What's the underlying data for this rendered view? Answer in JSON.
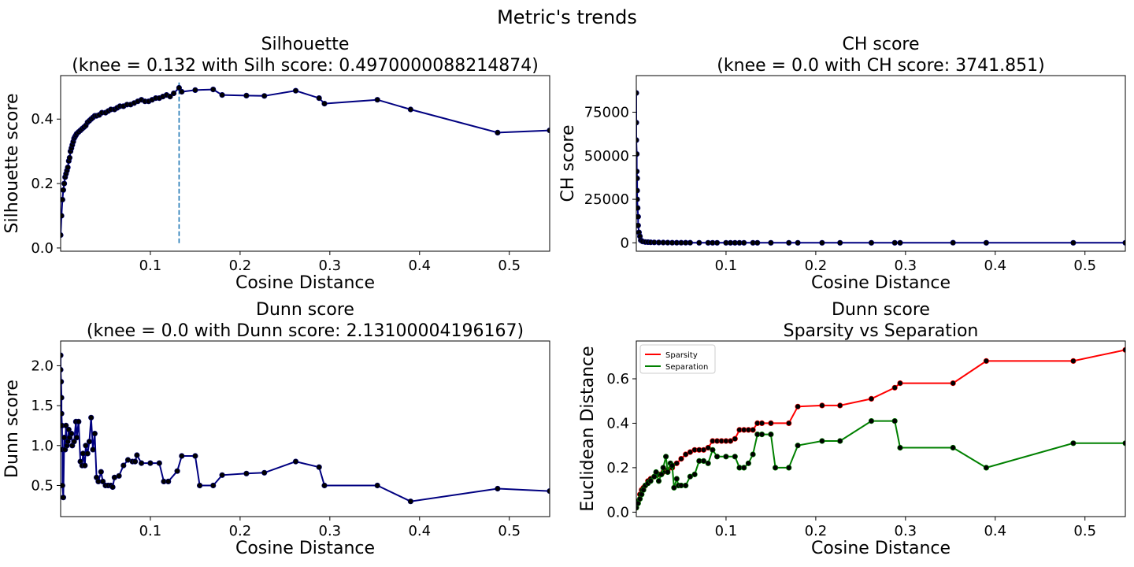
{
  "suptitle": "Metric's trends",
  "colors": {
    "line": "#000080",
    "marker": "#000000",
    "knee": "#1f77b4",
    "sparsity": "#ff0000",
    "separation": "#008000"
  },
  "chart_data": [
    {
      "id": "silhouette",
      "type": "line",
      "title": [
        "Silhouette",
        "(knee = 0.132 with Silh score: 0.4970000088214874)"
      ],
      "xlabel": "Cosine Distance",
      "ylabel": "Silhouette score",
      "xlim": [
        0.0,
        0.545
      ],
      "ylim": [
        -0.01,
        0.535
      ],
      "xticks": [
        0.1,
        0.2,
        0.3,
        0.4,
        0.5
      ],
      "xtick_labels": [
        "0.1",
        "0.2",
        "0.3",
        "0.4",
        "0.5"
      ],
      "yticks": [
        0.0,
        0.2,
        0.4
      ],
      "ytick_labels": [
        "0.0",
        "0.2",
        "0.4"
      ],
      "knee": {
        "x": 0.132,
        "y_range": [
          0.015,
          0.52
        ]
      },
      "series": [
        {
          "color_key": "line",
          "x": [
            0.0,
            0.001,
            0.002,
            0.003,
            0.004,
            0.005,
            0.006,
            0.007,
            0.008,
            0.009,
            0.01,
            0.011,
            0.012,
            0.013,
            0.014,
            0.015,
            0.016,
            0.017,
            0.018,
            0.02,
            0.022,
            0.024,
            0.026,
            0.028,
            0.03,
            0.032,
            0.034,
            0.036,
            0.038,
            0.04,
            0.043,
            0.046,
            0.05,
            0.053,
            0.056,
            0.06,
            0.063,
            0.066,
            0.07,
            0.074,
            0.078,
            0.082,
            0.086,
            0.09,
            0.094,
            0.098,
            0.102,
            0.106,
            0.11,
            0.114,
            0.118,
            0.122,
            0.126,
            0.132,
            0.135,
            0.15,
            0.17,
            0.18,
            0.207,
            0.227,
            0.262,
            0.288,
            0.294,
            0.353,
            0.39,
            0.487,
            0.545
          ],
          "y": [
            0.04,
            0.1,
            0.15,
            0.18,
            0.2,
            0.22,
            0.23,
            0.24,
            0.25,
            0.27,
            0.28,
            0.3,
            0.31,
            0.32,
            0.33,
            0.34,
            0.345,
            0.35,
            0.355,
            0.36,
            0.365,
            0.37,
            0.375,
            0.38,
            0.39,
            0.395,
            0.4,
            0.405,
            0.41,
            0.41,
            0.413,
            0.42,
            0.42,
            0.425,
            0.43,
            0.43,
            0.435,
            0.44,
            0.44,
            0.445,
            0.445,
            0.45,
            0.455,
            0.46,
            0.455,
            0.455,
            0.46,
            0.465,
            0.465,
            0.47,
            0.475,
            0.47,
            0.48,
            0.497,
            0.485,
            0.49,
            0.492,
            0.475,
            0.473,
            0.472,
            0.488,
            0.465,
            0.448,
            0.46,
            0.43,
            0.358,
            0.365
          ]
        }
      ]
    },
    {
      "id": "ch",
      "type": "line",
      "title": [
        "CH score",
        "(knee = 0.0 with CH score: 3741.851)"
      ],
      "xlabel": "Cosine Distance",
      "ylabel": "CH score",
      "xlim": [
        0.0,
        0.545
      ],
      "ylim": [
        -4800,
        96000
      ],
      "xticks": [
        0.1,
        0.2,
        0.3,
        0.4,
        0.5
      ],
      "xtick_labels": [
        "0.1",
        "0.2",
        "0.3",
        "0.4",
        "0.5"
      ],
      "yticks": [
        0,
        25000,
        50000,
        75000
      ],
      "ytick_labels": [
        "0",
        "25000",
        "50000",
        "75000"
      ],
      "series": [
        {
          "color_key": "line",
          "x": [
            0.0,
            0.0,
            0.0,
            0.0005,
            0.0005,
            0.001,
            0.001,
            0.001,
            0.0015,
            0.002,
            0.002,
            0.003,
            0.004,
            0.005,
            0.007,
            0.01,
            0.013,
            0.016,
            0.02,
            0.025,
            0.03,
            0.035,
            0.04,
            0.045,
            0.05,
            0.055,
            0.06,
            0.07,
            0.08,
            0.085,
            0.09,
            0.1,
            0.105,
            0.11,
            0.115,
            0.12,
            0.13,
            0.135,
            0.15,
            0.17,
            0.18,
            0.207,
            0.227,
            0.262,
            0.288,
            0.294,
            0.353,
            0.39,
            0.487,
            0.545
          ],
          "y": [
            86000,
            69000,
            59000,
            51000,
            41000,
            37000,
            30000,
            25000,
            20000,
            15000,
            10000,
            6000,
            3741,
            1500,
            800,
            500,
            400,
            300,
            250,
            200,
            150,
            120,
            100,
            90,
            80,
            70,
            60,
            50,
            45,
            40,
            38,
            36,
            34,
            32,
            30,
            28,
            26,
            25,
            24,
            23,
            22,
            21,
            20,
            20,
            20,
            20,
            80,
            20,
            20,
            20
          ]
        }
      ]
    },
    {
      "id": "dunn",
      "type": "line",
      "title": [
        "Dunn score",
        "(knee = 0.0 with Dunn score: 2.13100004196167)"
      ],
      "xlabel": "Cosine Distance",
      "ylabel": "Dunn score",
      "xlim": [
        0.0,
        0.545
      ],
      "ylim": [
        0.11,
        2.31
      ],
      "xticks": [
        0.1,
        0.2,
        0.3,
        0.4,
        0.5
      ],
      "xtick_labels": [
        "0.1",
        "0.2",
        "0.3",
        "0.4",
        "0.5"
      ],
      "yticks": [
        0.5,
        1.0,
        1.5,
        2.0
      ],
      "ytick_labels": [
        "0.5",
        "1.0",
        "1.5",
        "2.0"
      ],
      "series": [
        {
          "color_key": "line",
          "x": [
            0.0,
            0.0,
            0.0005,
            0.001,
            0.001,
            0.0015,
            0.002,
            0.002,
            0.003,
            0.004,
            0.005,
            0.006,
            0.007,
            0.008,
            0.009,
            0.01,
            0.012,
            0.013,
            0.015,
            0.017,
            0.018,
            0.02,
            0.022,
            0.024,
            0.025,
            0.027,
            0.028,
            0.03,
            0.032,
            0.034,
            0.036,
            0.038,
            0.04,
            0.042,
            0.045,
            0.047,
            0.05,
            0.053,
            0.056,
            0.058,
            0.06,
            0.065,
            0.07,
            0.075,
            0.08,
            0.083,
            0.085,
            0.09,
            0.1,
            0.11,
            0.115,
            0.12,
            0.13,
            0.135,
            0.15,
            0.155,
            0.17,
            0.18,
            0.207,
            0.227,
            0.262,
            0.288,
            0.294,
            0.353,
            0.39,
            0.487,
            0.545
          ],
          "y": [
            2.13,
            1.95,
            1.8,
            1.6,
            1.4,
            1.25,
            0.95,
            0.5,
            0.35,
            1.1,
            0.95,
            1.25,
            1.0,
            1.05,
            1.2,
            1.1,
            1.15,
            1.0,
            1.05,
            1.3,
            1.1,
            1.3,
            0.8,
            0.75,
            0.9,
            0.75,
            1.0,
            0.9,
            1.05,
            1.35,
            0.95,
            1.15,
            0.6,
            0.55,
            0.67,
            0.55,
            0.5,
            0.5,
            0.5,
            0.48,
            0.6,
            0.62,
            0.75,
            0.82,
            0.8,
            0.8,
            0.88,
            0.78,
            0.78,
            0.78,
            0.55,
            0.55,
            0.68,
            0.87,
            0.87,
            0.5,
            0.5,
            0.63,
            0.65,
            0.66,
            0.8,
            0.73,
            0.5,
            0.5,
            0.3,
            0.46,
            0.43
          ]
        }
      ]
    },
    {
      "id": "sparsity-separation",
      "type": "line",
      "title": [
        "Dunn score",
        "Sparsity vs Separation"
      ],
      "xlabel": "Cosine Distance",
      "ylabel": "Euclidean Distance",
      "xlim": [
        0.0,
        0.545
      ],
      "ylim": [
        -0.02,
        0.77
      ],
      "xticks": [
        0.1,
        0.2,
        0.3,
        0.4,
        0.5
      ],
      "xtick_labels": [
        "0.1",
        "0.2",
        "0.3",
        "0.4",
        "0.5"
      ],
      "yticks": [
        0.0,
        0.2,
        0.4,
        0.6
      ],
      "ytick_labels": [
        "0.0",
        "0.2",
        "0.4",
        "0.6"
      ],
      "legend": {
        "placement": "upper-left",
        "entries": [
          "Sparsity",
          "Separation"
        ]
      },
      "series": [
        {
          "name": "Sparsity",
          "color_key": "sparsity",
          "x": [
            0.0,
            0.002,
            0.004,
            0.006,
            0.008,
            0.01,
            0.013,
            0.016,
            0.02,
            0.025,
            0.03,
            0.035,
            0.04,
            0.045,
            0.05,
            0.055,
            0.06,
            0.065,
            0.07,
            0.075,
            0.08,
            0.085,
            0.09,
            0.095,
            0.1,
            0.105,
            0.11,
            0.115,
            0.12,
            0.125,
            0.13,
            0.135,
            0.14,
            0.15,
            0.17,
            0.18,
            0.207,
            0.227,
            0.262,
            0.288,
            0.294,
            0.353,
            0.39,
            0.487,
            0.545
          ],
          "y": [
            0.02,
            0.05,
            0.08,
            0.1,
            0.11,
            0.12,
            0.14,
            0.15,
            0.16,
            0.17,
            0.18,
            0.19,
            0.2,
            0.22,
            0.24,
            0.26,
            0.27,
            0.28,
            0.28,
            0.28,
            0.29,
            0.32,
            0.32,
            0.32,
            0.32,
            0.32,
            0.33,
            0.37,
            0.37,
            0.37,
            0.37,
            0.4,
            0.4,
            0.4,
            0.4,
            0.475,
            0.48,
            0.48,
            0.51,
            0.56,
            0.58,
            0.58,
            0.68,
            0.68,
            0.73
          ]
        },
        {
          "name": "Separation",
          "color_key": "separation",
          "x": [
            0.0,
            0.002,
            0.004,
            0.006,
            0.008,
            0.01,
            0.013,
            0.016,
            0.02,
            0.022,
            0.025,
            0.028,
            0.03,
            0.033,
            0.035,
            0.038,
            0.04,
            0.042,
            0.045,
            0.047,
            0.05,
            0.055,
            0.06,
            0.065,
            0.07,
            0.075,
            0.08,
            0.085,
            0.09,
            0.1,
            0.11,
            0.115,
            0.12,
            0.125,
            0.13,
            0.135,
            0.14,
            0.15,
            0.155,
            0.17,
            0.18,
            0.207,
            0.227,
            0.262,
            0.288,
            0.294,
            0.353,
            0.39,
            0.487,
            0.545
          ],
          "y": [
            0.02,
            0.04,
            0.06,
            0.08,
            0.1,
            0.12,
            0.13,
            0.14,
            0.16,
            0.18,
            0.14,
            0.17,
            0.2,
            0.25,
            0.18,
            0.22,
            0.21,
            0.11,
            0.15,
            0.12,
            0.12,
            0.12,
            0.16,
            0.17,
            0.23,
            0.23,
            0.22,
            0.28,
            0.25,
            0.25,
            0.25,
            0.2,
            0.2,
            0.22,
            0.26,
            0.35,
            0.35,
            0.35,
            0.2,
            0.2,
            0.3,
            0.32,
            0.32,
            0.41,
            0.41,
            0.29,
            0.29,
            0.2,
            0.31,
            0.31
          ]
        }
      ]
    }
  ]
}
